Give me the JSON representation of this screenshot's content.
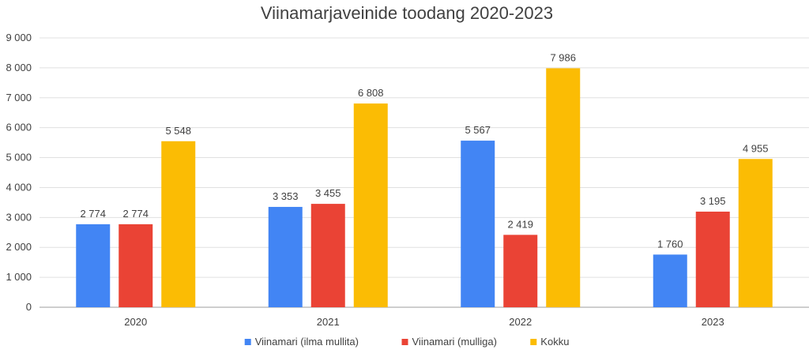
{
  "chart_data": {
    "type": "bar",
    "title": "Viinamarjaveinide toodang 2020-2023",
    "categories": [
      "2020",
      "2021",
      "2022",
      "2023"
    ],
    "series": [
      {
        "name": "Viinamari (ilma mullita)",
        "color": "#4285f4",
        "values": [
          2774,
          3353,
          5567,
          1760
        ],
        "labels": [
          "2 774",
          "3 353",
          "5 567",
          "1 760"
        ]
      },
      {
        "name": "Viinamari (mulliga)",
        "color": "#ea4335",
        "values": [
          2774,
          3455,
          2419,
          3195
        ],
        "labels": [
          "2 774",
          "3 455",
          "2 419",
          "3 195"
        ]
      },
      {
        "name": "Kokku",
        "color": "#fbbc04",
        "values": [
          5548,
          6808,
          7986,
          4955
        ],
        "labels": [
          "5 548",
          "6 808",
          "7 986",
          "4 955"
        ]
      }
    ],
    "ylim": [
      0,
      9000
    ],
    "yticks": [
      0,
      1000,
      2000,
      3000,
      4000,
      5000,
      6000,
      7000,
      8000,
      9000
    ],
    "ytick_labels": [
      "0",
      "1 000",
      "2 000",
      "3 000",
      "4 000",
      "5 000",
      "6 000",
      "7 000",
      "8 000",
      "9 000"
    ],
    "grid": true,
    "legend_position": "bottom"
  }
}
